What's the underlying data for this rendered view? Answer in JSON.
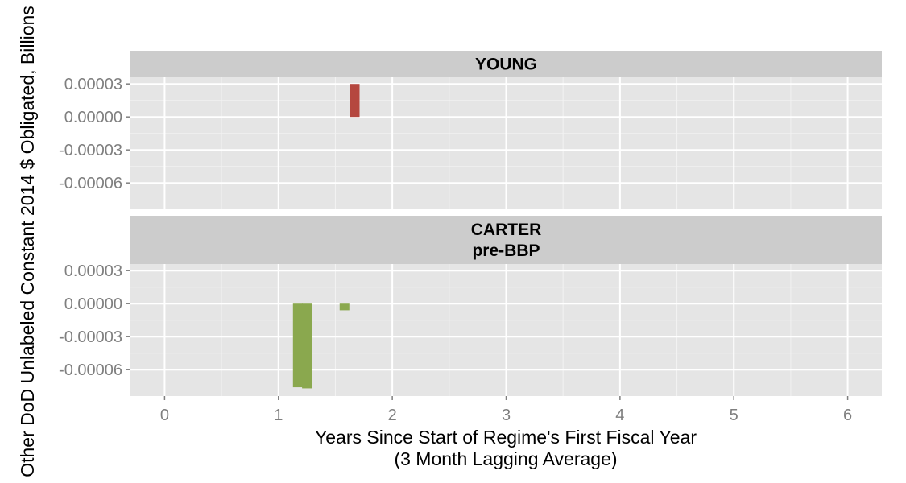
{
  "chart_data": {
    "type": "bar",
    "xlabel": "Years Since Start of Regime's First Fiscal Year",
    "xlabel_sub": "(3 Month Lagging Average)",
    "ylabel": "Other DoD Unlabeled Constant 2014 $ Obligated, Billions",
    "x_ticks": [
      "0",
      "1",
      "2",
      "3",
      "4",
      "5",
      "6"
    ],
    "xlim": [
      -0.3,
      6.3
    ],
    "y_ticks": [
      "0.00003",
      "0.00000",
      "-0.00003",
      "-0.00006"
    ],
    "y_tick_values": [
      3e-05,
      0.0,
      -3e-05,
      -6e-05
    ],
    "ylim": [
      -8.4e-05,
      3.6e-05
    ],
    "grid": true,
    "legend": "none",
    "panels": [
      {
        "strip_lines": [
          "YOUNG"
        ],
        "color": "#b5473f",
        "bars": [
          {
            "x": 1.67,
            "y": 3e-05
          }
        ]
      },
      {
        "strip_lines": [
          "CARTER",
          "pre-BBP"
        ],
        "color": "#8aa84e",
        "bars": [
          {
            "x": 1.17,
            "y": -7.6e-05
          },
          {
            "x": 1.25,
            "y": -7.7e-05
          },
          {
            "x": 1.58,
            "y": -6e-06
          }
        ]
      }
    ]
  }
}
